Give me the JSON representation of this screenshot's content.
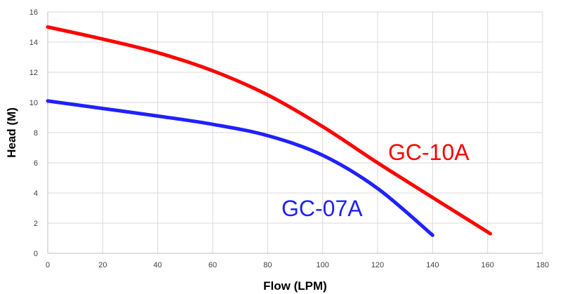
{
  "chart_data": {
    "type": "line",
    "title": "",
    "xlabel": "Flow (LPM)",
    "ylabel": "Head (M)",
    "xlim": [
      0,
      180
    ],
    "ylim": [
      0,
      16
    ],
    "xticks": [
      "0",
      "20",
      "40",
      "60",
      "80",
      "100",
      "120",
      "140",
      "160",
      "180"
    ],
    "yticks": [
      "0",
      "2",
      "4",
      "6",
      "8",
      "10",
      "12",
      "14",
      "16"
    ],
    "grid": true,
    "legend": "none",
    "series": [
      {
        "name": "GC-10A",
        "color": "#ff0000",
        "x": [
          0,
          20,
          40,
          60,
          80,
          100,
          120,
          140,
          161
        ],
        "y": [
          15.0,
          14.2,
          13.3,
          12.1,
          10.5,
          8.4,
          6.0,
          3.7,
          1.3
        ]
      },
      {
        "name": "GC-07A",
        "color": "#2020ff",
        "x": [
          0,
          20,
          40,
          60,
          80,
          100,
          120,
          140
        ],
        "y": [
          10.1,
          9.6,
          9.1,
          8.55,
          7.8,
          6.5,
          4.3,
          1.2
        ]
      }
    ]
  }
}
